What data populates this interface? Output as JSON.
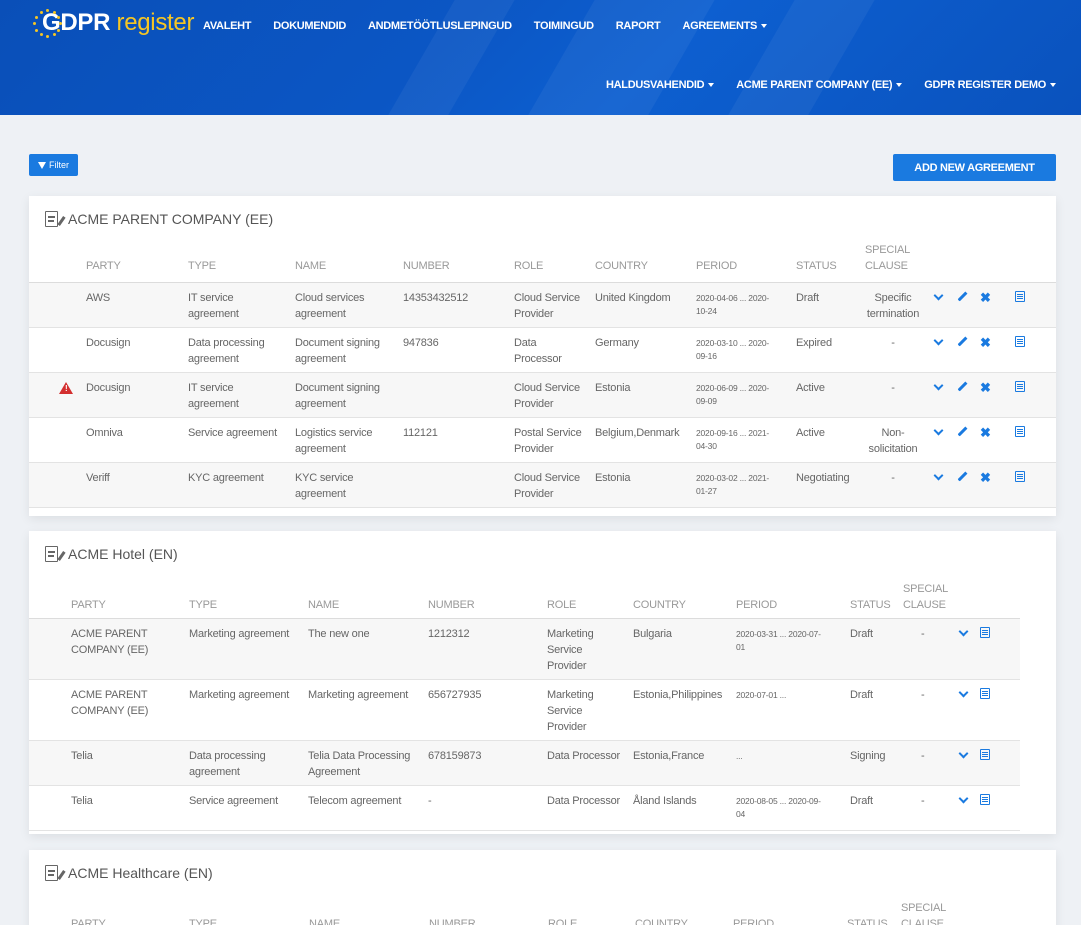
{
  "logo": {
    "bold": "GDPR",
    "light": "register"
  },
  "nav_top": [
    "AVALEHT",
    "DOKUMENDID",
    "ANDMETÖÖTLUSLEPINGUD",
    "TOIMINGUD",
    "RAPORT",
    "AGREEMENTS"
  ],
  "nav_bottom": [
    "HALDUSVAHENDID",
    "ACME PARENT COMPANY (EE)",
    "GDPR REGISTER DEMO"
  ],
  "toolbar": {
    "filter_label": "Filter",
    "add_label": "ADD NEW AGREEMENT"
  },
  "columns": {
    "party": "PARTY",
    "type": "TYPE",
    "name": "NAME",
    "number": "NUMBER",
    "role": "ROLE",
    "country": "COUNTRY",
    "period": "PERIOD",
    "status": "STATUS",
    "special1": "SPECIAL",
    "special2": "CLAUSE"
  },
  "cards": [
    {
      "title": "ACME PARENT COMPANY (EE)",
      "rows": [
        {
          "warning": false,
          "party": [
            "AWS"
          ],
          "type": [
            "IT service",
            "agreement"
          ],
          "name": [
            "Cloud services",
            "agreement"
          ],
          "number": "14353432512",
          "role": [
            "Cloud Service",
            "Provider"
          ],
          "country": "United Kingdom",
          "period": [
            "2020-04-06 ... 2020-",
            "10-24"
          ],
          "status": "Draft",
          "special": [
            "Specific",
            "termination"
          ]
        },
        {
          "warning": false,
          "party": [
            "Docusign"
          ],
          "type": [
            "Data processing",
            "agreement"
          ],
          "name": [
            "Document signing",
            "agreement"
          ],
          "number": "947836",
          "role": [
            "Data",
            "Processor"
          ],
          "country": "Germany",
          "period": [
            "2020-03-10 ... 2020-",
            "09-16"
          ],
          "status": "Expired",
          "special": [
            "-"
          ]
        },
        {
          "warning": true,
          "party": [
            "Docusign"
          ],
          "type": [
            "IT service",
            "agreement"
          ],
          "name": [
            "Document signing",
            "agreement"
          ],
          "number": "",
          "role": [
            "Cloud Service",
            "Provider"
          ],
          "country": "Estonia",
          "period": [
            "2020-06-09 ... 2020-",
            "09-09"
          ],
          "status": "Active",
          "special": [
            "-"
          ]
        },
        {
          "warning": false,
          "party": [
            "Omniva"
          ],
          "type": [
            "Service agreement"
          ],
          "name": [
            "Logistics service",
            "agreement"
          ],
          "number": "112121",
          "role": [
            "Postal Service",
            "Provider"
          ],
          "country": "Belgium,Denmark",
          "period": [
            "2020-09-16 ... 2021-",
            "04-30"
          ],
          "status": "Active",
          "special": [
            "Non-",
            "solicitation"
          ]
        },
        {
          "warning": false,
          "party": [
            "Veriff"
          ],
          "type": [
            "KYC agreement"
          ],
          "name": [
            "KYC service",
            "agreement"
          ],
          "number": "",
          "role": [
            "Cloud Service",
            "Provider"
          ],
          "country": "Estonia",
          "period": [
            "2020-03-02 ... 2021-",
            "01-27"
          ],
          "status": "Negotiating",
          "special": [
            "-"
          ]
        }
      ]
    },
    {
      "title": "ACME Hotel (EN)",
      "rows": [
        {
          "party": [
            "ACME PARENT",
            "COMPANY (EE)"
          ],
          "type": [
            "Marketing agreement"
          ],
          "name": [
            "The new one"
          ],
          "number": "1212312",
          "role": [
            "Marketing",
            "Service",
            "Provider"
          ],
          "country": "Bulgaria",
          "period": [
            "2020-03-31 ... 2020-07-",
            "01"
          ],
          "status": "Draft",
          "special": [
            "-"
          ]
        },
        {
          "party": [
            "ACME PARENT",
            "COMPANY (EE)"
          ],
          "type": [
            "Marketing agreement"
          ],
          "name": [
            "Marketing agreement"
          ],
          "number": "656727935",
          "role": [
            "Marketing",
            "Service",
            "Provider"
          ],
          "country": "Estonia,Philippines",
          "period": [
            "2020-07-01 ..."
          ],
          "status": "Draft",
          "special": [
            "-"
          ]
        },
        {
          "party": [
            "Telia"
          ],
          "type": [
            "Data processing",
            "agreement"
          ],
          "name": [
            "Telia Data Processing",
            "Agreement"
          ],
          "number": "678159873",
          "role": [
            "Data Processor"
          ],
          "country": "Estonia,France",
          "period": [
            "..."
          ],
          "status": "Signing",
          "special": [
            "-"
          ]
        },
        {
          "party": [
            "Telia"
          ],
          "type": [
            "Service agreement"
          ],
          "name": [
            "Telecom agreement"
          ],
          "number": "-",
          "role": [
            "Data Processor"
          ],
          "country": "Åland Islands",
          "period": [
            "2020-08-05 ... 2020-09-",
            "04"
          ],
          "status": "Draft",
          "special": [
            "-"
          ]
        }
      ]
    },
    {
      "title": "ACME Healthcare (EN)",
      "rows": []
    }
  ]
}
